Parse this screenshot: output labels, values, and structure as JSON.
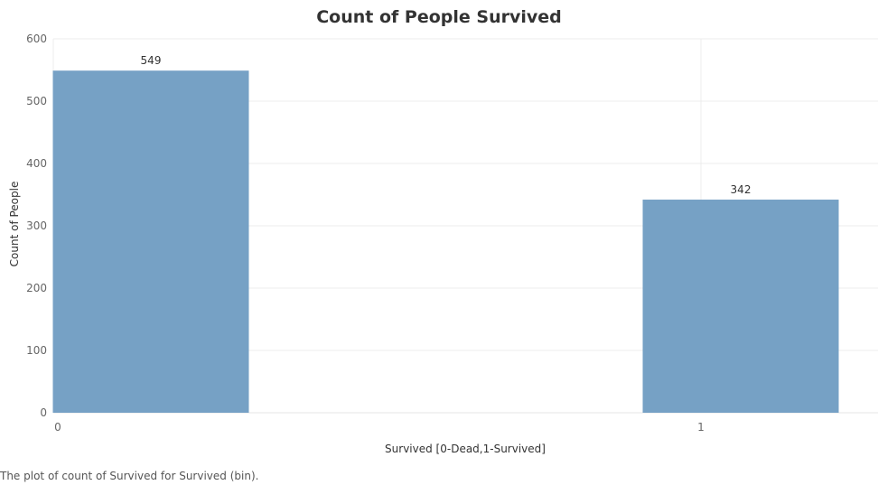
{
  "chart_data": {
    "type": "bar",
    "title": "Count of People Survived",
    "categories": [
      "0",
      "1"
    ],
    "values": [
      549,
      342
    ],
    "data_labels": [
      "549",
      "342"
    ],
    "xlabel": "Survived [0-Dead,1-Survived]",
    "ylabel": "Count of People",
    "ylim": [
      0,
      600
    ],
    "yticks": [
      0,
      100,
      200,
      300,
      400,
      500,
      600
    ],
    "grid": true,
    "bar_color": "#76a1c5",
    "caption": "The plot of count of Survived for Survived (bin)."
  }
}
